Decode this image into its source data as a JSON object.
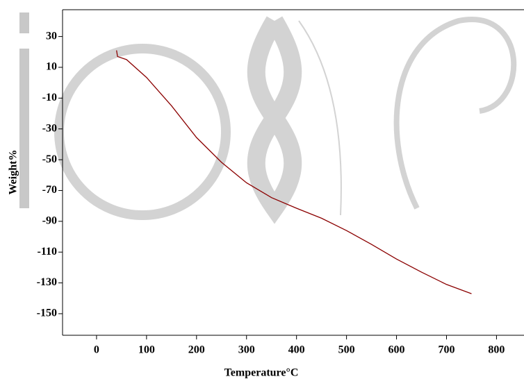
{
  "chart_data": {
    "type": "line",
    "x_label": "Temperature°C",
    "y_label": "Weight%",
    "x": [
      40,
      42,
      60,
      100,
      150,
      200,
      250,
      300,
      350,
      400,
      450,
      500,
      550,
      600,
      650,
      700,
      750
    ],
    "series": [
      {
        "color": "#8b0000",
        "values": [
          21,
          17,
          15,
          3.4,
          -15,
          -35.6,
          -51.7,
          -65,
          -74.6,
          -81.5,
          -88,
          -96,
          -105,
          -114.5,
          -123,
          -131,
          -137
        ]
      }
    ],
    "xlim": [
      -68,
      855
    ],
    "ylim": [
      -164,
      47.4
    ],
    "xticks": [
      0,
      100,
      200,
      300,
      400,
      500,
      600,
      700,
      800
    ],
    "yticks": [
      30,
      10,
      -10,
      -30,
      -50,
      -70,
      -90,
      -110,
      -130,
      -150
    ]
  }
}
